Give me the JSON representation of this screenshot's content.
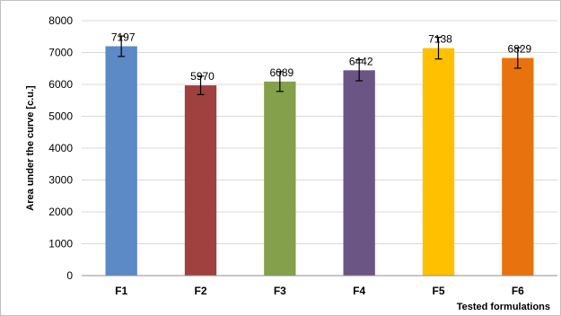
{
  "chart_data": {
    "type": "bar",
    "title": "",
    "xlabel": "Tested formulations",
    "ylabel": "Area under the curve  [c.u.]",
    "categories": [
      "F1",
      "F2",
      "F3",
      "F4",
      "F5",
      "F6"
    ],
    "values": [
      7197,
      5970,
      6089,
      6442,
      7138,
      6829
    ],
    "data_labels": [
      "7197",
      "5970",
      "6089",
      "6442",
      "7138",
      "6829"
    ],
    "error": [
      320,
      290,
      310,
      330,
      340,
      320
    ],
    "colors": [
      "#5b8ac6",
      "#a0403f",
      "#84a04a",
      "#6a5585",
      "#ffc000",
      "#e8730e"
    ],
    "ylim": [
      0,
      8000
    ],
    "yticks": [
      "0",
      "1000",
      "2000",
      "3000",
      "4000",
      "5000",
      "6000",
      "7000",
      "8000"
    ],
    "ytick_values": [
      0,
      1000,
      2000,
      3000,
      4000,
      5000,
      6000,
      7000,
      8000
    ],
    "grid": true,
    "legend": "none"
  }
}
